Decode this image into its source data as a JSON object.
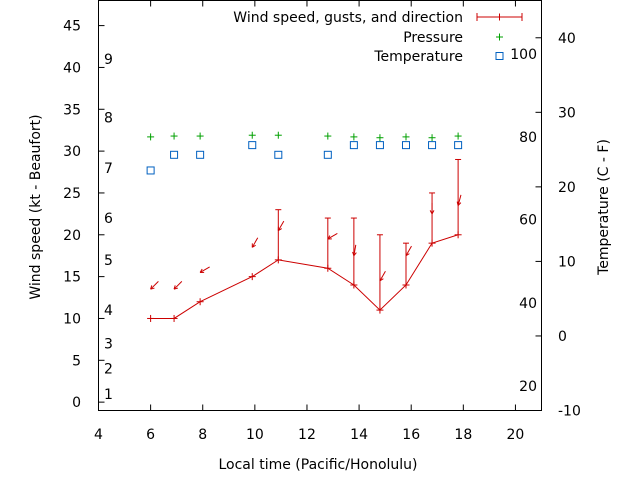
{
  "chart_data": {
    "type": "line",
    "xlabel": "Local time (Pacific/Honolulu)",
    "ylabel": "Wind speed (kt - Beaufort)",
    "y2label": "Temperature (C - F)",
    "xlim": [
      4,
      21
    ],
    "ylim": [
      -1,
      48
    ],
    "y2lim": [
      -10,
      45
    ],
    "xticks": [
      4,
      6,
      8,
      10,
      12,
      14,
      16,
      18,
      20
    ],
    "yticks": [
      0,
      5,
      10,
      15,
      20,
      25,
      30,
      35,
      40,
      45
    ],
    "y2ticks": [
      -10,
      0,
      10,
      20,
      30,
      40
    ],
    "fahrenheit_labels": [
      {
        "label": "20",
        "celsius": -6.7
      },
      {
        "label": "40",
        "celsius": 4.4
      },
      {
        "label": "60",
        "celsius": 15.6
      },
      {
        "label": "80",
        "celsius": 26.7
      },
      {
        "label": "100",
        "celsius": 37.8
      }
    ],
    "beaufort_labels": [
      {
        "label": "1",
        "kt": 1
      },
      {
        "label": "2",
        "kt": 4
      },
      {
        "label": "3",
        "kt": 7
      },
      {
        "label": "4",
        "kt": 11
      },
      {
        "label": "5",
        "kt": 17
      },
      {
        "label": "6",
        "kt": 22
      },
      {
        "label": "7",
        "kt": 28
      },
      {
        "label": "8",
        "kt": 34
      },
      {
        "label": "9",
        "kt": 41
      }
    ],
    "legend": {
      "placement": "top-right",
      "entries": [
        "Wind speed, gusts, and direction",
        "Pressure",
        "Temperature"
      ]
    },
    "series": [
      {
        "name": "Wind speed, gusts, and direction",
        "color": "#cc0000",
        "x": [
          6,
          6.9,
          7.9,
          9.9,
          10.9,
          12.8,
          13.8,
          14.8,
          15.8,
          16.8,
          17.8
        ],
        "y": [
          10,
          10,
          12,
          15,
          17,
          16,
          14,
          11,
          14,
          19,
          20
        ],
        "gusts": [
          null,
          null,
          null,
          null,
          23,
          22,
          22,
          20,
          19,
          25,
          29
        ],
        "direction_deg": [
          45,
          45,
          30,
          60,
          60,
          30,
          80,
          60,
          60,
          90,
          75
        ]
      },
      {
        "name": "Pressure",
        "color": "#00a000",
        "marker": "plus",
        "x": [
          6,
          6.9,
          7.9,
          9.9,
          10.9,
          12.8,
          13.8,
          14.8,
          15.8,
          16.8,
          17.8
        ],
        "y": [
          31.7,
          31.8,
          31.8,
          31.9,
          31.9,
          31.8,
          31.7,
          31.6,
          31.7,
          31.6,
          31.8
        ]
      },
      {
        "name": "Temperature",
        "color": "#0060c0",
        "marker": "square",
        "x": [
          6,
          6.9,
          7.9,
          9.9,
          10.9,
          12.8,
          13.8,
          14.8,
          15.8,
          16.8,
          17.8
        ],
        "y": [
          22.2,
          24.3,
          24.3,
          25.6,
          24.3,
          24.3,
          25.6,
          25.6,
          25.6,
          25.6,
          25.6
        ]
      }
    ]
  }
}
